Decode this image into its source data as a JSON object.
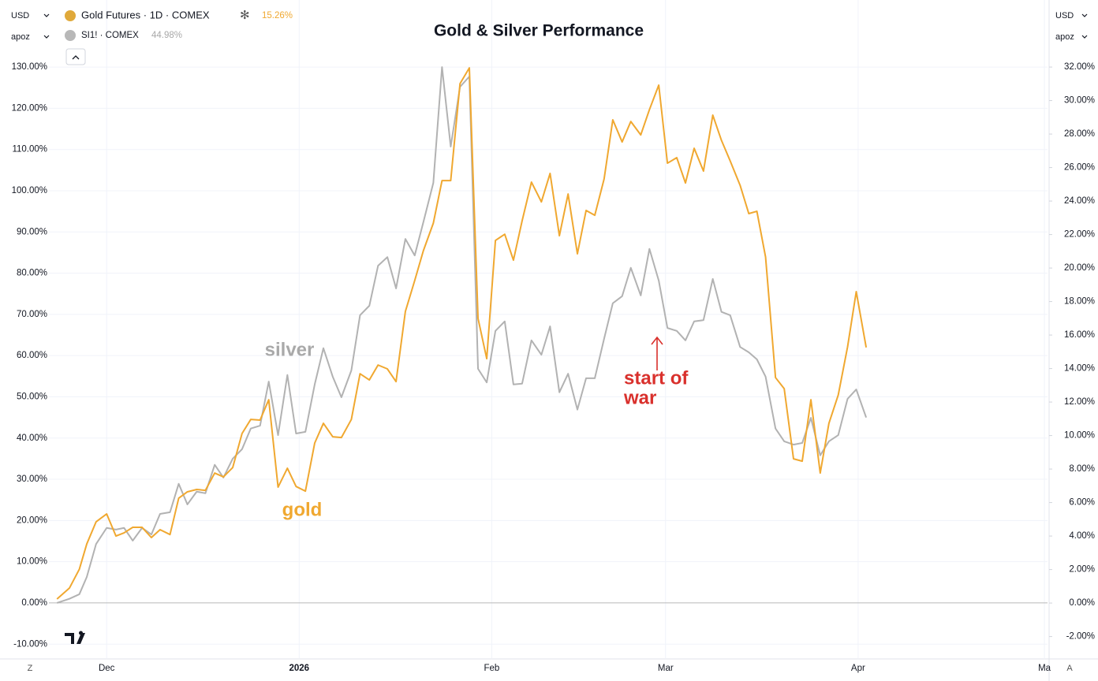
{
  "ui": {
    "currency": "USD",
    "scale_mode": "apoz",
    "left_corner": "Z",
    "right_corner": "A"
  },
  "chart_data": {
    "type": "line",
    "title": "Gold & Silver Performance",
    "x": [
      -8.0,
      -6.0,
      -4.4,
      -3.2,
      -1.7,
      0,
      1.5,
      2.8,
      4.2,
      5.7,
      7.2,
      8.6,
      10.2,
      11.6,
      13.0,
      14.5,
      15.9,
      17.4,
      18.8,
      20.3,
      21.8,
      23.2,
      24.7,
      26.1,
      27.6,
      29.1,
      30.5,
      32.0,
      33.5,
      34.9,
      36.4,
      37.8,
      39.4,
      40.8,
      42.3,
      43.7,
      45.2,
      46.6,
      48.1,
      49.6,
      51.0,
      52.6,
      54.0,
      55.4,
      56.9,
      58.4,
      59.8,
      61.2,
      62.6,
      64.1,
      65.5,
      66.9,
      68.4,
      70.0,
      71.4,
      72.9,
      74.3,
      75.8,
      77.2,
      78.6,
      80.1,
      81.5,
      83.0,
      84.4,
      86.0,
      87.4,
      88.9,
      90.3,
      91.8,
      93.2,
      94.6,
      96.1,
      97.6,
      99.0,
      100.4,
      102.0,
      103.4,
      104.7,
      106.1,
      107.7,
      109.1,
      110.6,
      112.0,
      113.4,
      114.9,
      116.3,
      117.8,
      119.3,
      120.7,
      122.3
    ],
    "xlim": [
      -9.3,
      151.5
    ],
    "xticks": [
      {
        "value": 0,
        "label": "Dec"
      },
      {
        "value": 31,
        "label": "2026"
      },
      {
        "value": 62,
        "label": "Feb"
      },
      {
        "value": 90,
        "label": "Mar"
      },
      {
        "value": 121,
        "label": "Apr"
      },
      {
        "value": 151,
        "label": "Ma"
      }
    ],
    "ylim": [
      -13.4,
      134.8
    ],
    "yticks": [
      {
        "value": -10,
        "label": "-10.00%"
      },
      {
        "value": 0,
        "label": "0.00%"
      },
      {
        "value": 10,
        "label": "10.00%"
      },
      {
        "value": 20,
        "label": "20.00%"
      },
      {
        "value": 30,
        "label": "30.00%"
      },
      {
        "value": 40,
        "label": "40.00%"
      },
      {
        "value": 50,
        "label": "50.00%"
      },
      {
        "value": 60,
        "label": "60.00%"
      },
      {
        "value": 70,
        "label": "70.00%"
      },
      {
        "value": 80,
        "label": "80.00%"
      },
      {
        "value": 90,
        "label": "90.00%"
      },
      {
        "value": 100,
        "label": "100.00%"
      },
      {
        "value": 110,
        "label": "110.00%"
      },
      {
        "value": 120,
        "label": "120.00%"
      },
      {
        "value": 130,
        "label": "130.00%"
      }
    ],
    "y2lim": [
      -3.29,
      33.18
    ],
    "y2ticks": [
      {
        "value": -2,
        "label": "-2.00%"
      },
      {
        "value": 0,
        "label": "0.00%"
      },
      {
        "value": 2,
        "label": "2.00%"
      },
      {
        "value": 4,
        "label": "4.00%"
      },
      {
        "value": 6,
        "label": "6.00%"
      },
      {
        "value": 8,
        "label": "8.00%"
      },
      {
        "value": 10,
        "label": "10.00%"
      },
      {
        "value": 12,
        "label": "12.00%"
      },
      {
        "value": 14,
        "label": "14.00%"
      },
      {
        "value": 16,
        "label": "16.00%"
      },
      {
        "value": 18,
        "label": "18.00%"
      },
      {
        "value": 20,
        "label": "20.00%"
      },
      {
        "value": 22,
        "label": "22.00%"
      },
      {
        "value": 24,
        "label": "24.00%"
      },
      {
        "value": 26,
        "label": "26.00%"
      },
      {
        "value": 28,
        "label": "28.00%"
      },
      {
        "value": 30,
        "label": "30.00%"
      },
      {
        "value": 32,
        "label": "32.00%"
      }
    ],
    "grid": true,
    "series": [
      {
        "name": "SI1! · COMEX",
        "color": "#b2b2b2",
        "axis": "y",
        "values": [
          0,
          1.0,
          2.1,
          6.3,
          14.3,
          18.2,
          17.8,
          18.2,
          15.1,
          18.2,
          16.6,
          21.6,
          22.0,
          28.9,
          23.9,
          27.0,
          26.6,
          33.5,
          30.4,
          35.0,
          37.3,
          42.3,
          43.0,
          53.7,
          40.7,
          55.3,
          41.1,
          41.5,
          53.0,
          61.8,
          54.9,
          49.9,
          56.4,
          69.8,
          72.1,
          81.8,
          83.9,
          76.3,
          88.3,
          84.3,
          92.4,
          101.9,
          130.0,
          110.7,
          125.2,
          127.7,
          56.8,
          53.5,
          66.0,
          68.3,
          53.0,
          53.2,
          63.7,
          60.2,
          67.1,
          51.1,
          55.6,
          46.9,
          54.5,
          54.5,
          64.1,
          72.7,
          74.4,
          81.3,
          74.6,
          85.9,
          78.2,
          66.7,
          66.0,
          63.7,
          68.3,
          68.6,
          78.6,
          70.6,
          69.8,
          62.1,
          60.8,
          59.1,
          54.9,
          42.3,
          39.2,
          38.4,
          38.8,
          44.9,
          35.8,
          39.2,
          40.7,
          49.5,
          51.8,
          44.98
        ],
        "value_labels": [
          null,
          null,
          null,
          null,
          null,
          null,
          null,
          null,
          null,
          null,
          null,
          null,
          null,
          null,
          null,
          null,
          null,
          null,
          null,
          null,
          null,
          null,
          null,
          null,
          null,
          null,
          null,
          null,
          null,
          null,
          null,
          null,
          null,
          null,
          null,
          null,
          null,
          null,
          null,
          null,
          null,
          null,
          null,
          null,
          null,
          null,
          null,
          null,
          null,
          null,
          null,
          null,
          null,
          null,
          null,
          null,
          null,
          null,
          null,
          null,
          null,
          null,
          null,
          null,
          null,
          null,
          null,
          null,
          null,
          null,
          null,
          null,
          null,
          null,
          null,
          null,
          null,
          null,
          null,
          null,
          null,
          null,
          null,
          null,
          null,
          null,
          null,
          null,
          null,
          "44.98%"
        ]
      },
      {
        "name": "Gold Futures · 1D · COMEX",
        "color": "#f0a830",
        "axis": "y2",
        "values": [
          0.24,
          0.89,
          2.02,
          3.53,
          4.85,
          5.32,
          4.0,
          4.19,
          4.52,
          4.52,
          3.91,
          4.38,
          4.09,
          6.26,
          6.64,
          6.78,
          6.73,
          7.76,
          7.53,
          8.09,
          10.12,
          10.96,
          10.92,
          12.14,
          6.92,
          8.05,
          6.96,
          6.68,
          9.55,
          10.73,
          9.93,
          9.88,
          10.96,
          13.69,
          13.32,
          14.21,
          13.98,
          13.22,
          17.41,
          19.25,
          21.04,
          22.68,
          25.22,
          25.22,
          31.01,
          31.95,
          16.99,
          14.59,
          21.65,
          22.02,
          20.47,
          22.82,
          25.13,
          23.95,
          25.65,
          21.93,
          24.42,
          20.85,
          23.44,
          23.15,
          25.32,
          28.85,
          27.53,
          28.75,
          27.95,
          29.46,
          30.92,
          26.26,
          26.59,
          25.08,
          27.15,
          25.79,
          29.13,
          27.62,
          26.4,
          24.94,
          23.25,
          23.39,
          20.66,
          13.46,
          12.8,
          8.61,
          8.47,
          12.14,
          7.76,
          10.73,
          12.42,
          15.29,
          18.59,
          15.26
        ],
        "value_labels": [
          null,
          null,
          null,
          null,
          null,
          null,
          null,
          null,
          null,
          null,
          null,
          null,
          null,
          null,
          null,
          null,
          null,
          null,
          null,
          null,
          null,
          null,
          null,
          null,
          null,
          null,
          null,
          null,
          null,
          null,
          null,
          null,
          null,
          null,
          null,
          null,
          null,
          null,
          null,
          null,
          null,
          null,
          null,
          null,
          null,
          null,
          null,
          null,
          null,
          null,
          null,
          null,
          null,
          null,
          null,
          null,
          null,
          null,
          null,
          null,
          null,
          null,
          null,
          null,
          null,
          null,
          null,
          null,
          null,
          null,
          null,
          null,
          null,
          null,
          null,
          null,
          null,
          null,
          null,
          null,
          null,
          null,
          null,
          null,
          null,
          null,
          null,
          null,
          null,
          "15.26%"
        ]
      }
    ],
    "annotations": [
      {
        "text": "silver",
        "color": "#a9a9a9"
      },
      {
        "text": "gold",
        "color": "#f0a830"
      },
      {
        "text": "start of",
        "color": "#d9302c"
      },
      {
        "text": "war",
        "color": "#d9302c"
      }
    ]
  }
}
